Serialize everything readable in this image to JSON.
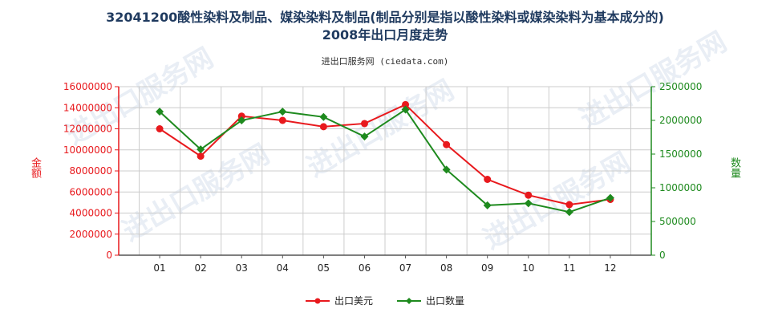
{
  "title_line1": "32041200酸性染料及制品、媒染染料及制品(制品分别是指以酸性染料或媒染染料为基本成分的)",
  "title_line2": "2008年出口月度走势",
  "source": "进出口服务网 (ciedata.com)",
  "watermark": "进出口服务网",
  "colors": {
    "left_axis": "#e8191d",
    "right_axis": "#1e8a1e",
    "grid": "#cccccc"
  },
  "chart_data": {
    "type": "line",
    "categories": [
      "01",
      "02",
      "03",
      "04",
      "05",
      "06",
      "07",
      "08",
      "09",
      "10",
      "11",
      "12"
    ],
    "ylabel_left": "金额",
    "ylabel_right": "数量",
    "ylim_left": [
      0,
      16000000
    ],
    "ylim_right": [
      0,
      2500000
    ],
    "yticks_left": [
      "0",
      "2000000",
      "4000000",
      "6000000",
      "8000000",
      "10000000",
      "12000000",
      "14000000",
      "16000000"
    ],
    "yticks_right": [
      "0",
      "500000",
      "1000000",
      "1500000",
      "2000000",
      "2500000"
    ],
    "series": [
      {
        "name": "出口美元",
        "axis": "left",
        "color": "#e8191d",
        "values": [
          12000000,
          9400000,
          13200000,
          12800000,
          12200000,
          12500000,
          14300000,
          10500000,
          7200000,
          5700000,
          4800000,
          5300000
        ]
      },
      {
        "name": "出口数量",
        "axis": "right",
        "color": "#1e8a1e",
        "values": [
          2130000,
          1570000,
          2000000,
          2130000,
          2050000,
          1760000,
          2160000,
          1270000,
          740000,
          770000,
          640000,
          850000
        ]
      }
    ],
    "grid": true,
    "legend": "bottom-center"
  }
}
